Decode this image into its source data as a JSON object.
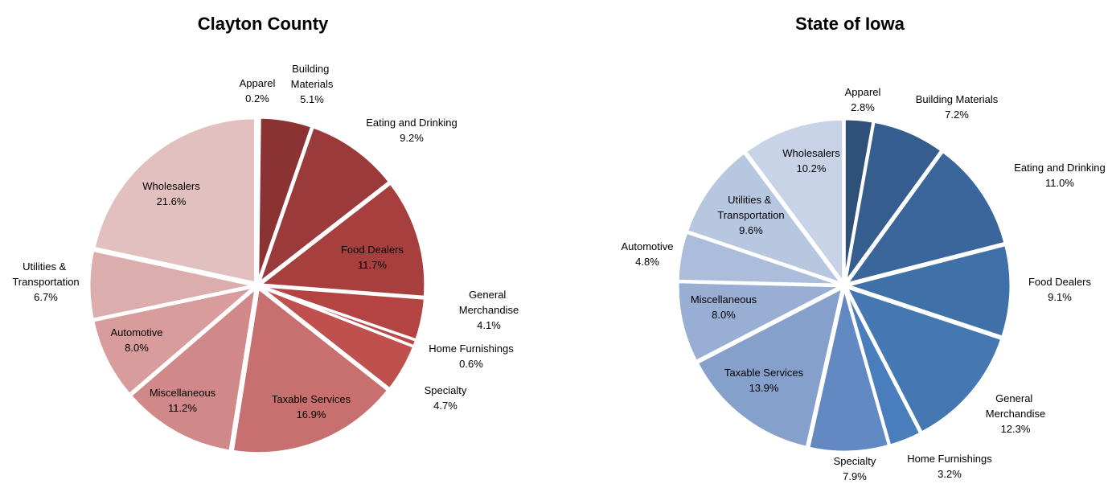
{
  "chart_data": [
    {
      "type": "pie",
      "title": "Clayton County",
      "categories": [
        "Apparel",
        "Building Materials",
        "Eating and Drinking",
        "Food Dealers",
        "General Merchandise",
        "Home Furnishings",
        "Specialty",
        "Taxable Services",
        "Miscellaneous",
        "Automotive",
        "Utilities & Transportation",
        "Wholesalers"
      ],
      "values": [
        0.2,
        5.1,
        9.2,
        11.7,
        4.1,
        0.6,
        4.7,
        16.9,
        11.2,
        8.0,
        6.7,
        21.6
      ],
      "value_labels": [
        "0.2%",
        "5.1%",
        "9.2%",
        "11.7%",
        "4.1%",
        "0.6%",
        "4.7%",
        "16.9%",
        "11.2%",
        "8.0%",
        "6.7%",
        "21.6%"
      ],
      "colors": [
        "#7b2c2c",
        "#8b3333",
        "#9a3a3a",
        "#a83f3f",
        "#b44444",
        "#bb4848",
        "#c0504d",
        "#c87070",
        "#d08888",
        "#d89c9c",
        "#dcadad",
        "#e2c0c0"
      ]
    },
    {
      "type": "pie",
      "title": "State of Iowa",
      "categories": [
        "Apparel",
        "Building Materials",
        "Eating and Drinking",
        "Food Dealers",
        "General Merchandise",
        "Home Furnishings",
        "Specialty",
        "Taxable Services",
        "Miscellaneous",
        "Automotive",
        "Utilities & Transportation",
        "Wholesalers"
      ],
      "values": [
        2.8,
        7.2,
        11.0,
        9.1,
        12.3,
        3.2,
        7.9,
        13.9,
        8.0,
        4.8,
        9.6,
        10.2
      ],
      "value_labels": [
        "2.8%",
        "7.2%",
        "11.0%",
        "9.1%",
        "12.3%",
        "3.2%",
        "7.9%",
        "13.9%",
        "8.0%",
        "4.8%",
        "9.6%",
        "10.2%"
      ],
      "colors": [
        "#2e5079",
        "#355d8d",
        "#3a669b",
        "#4070a8",
        "#4577b3",
        "#4a7dbb",
        "#6389c3",
        "#84a0cb",
        "#98aed3",
        "#abbddb",
        "#b8c7e0",
        "#c9d3e8"
      ]
    }
  ]
}
